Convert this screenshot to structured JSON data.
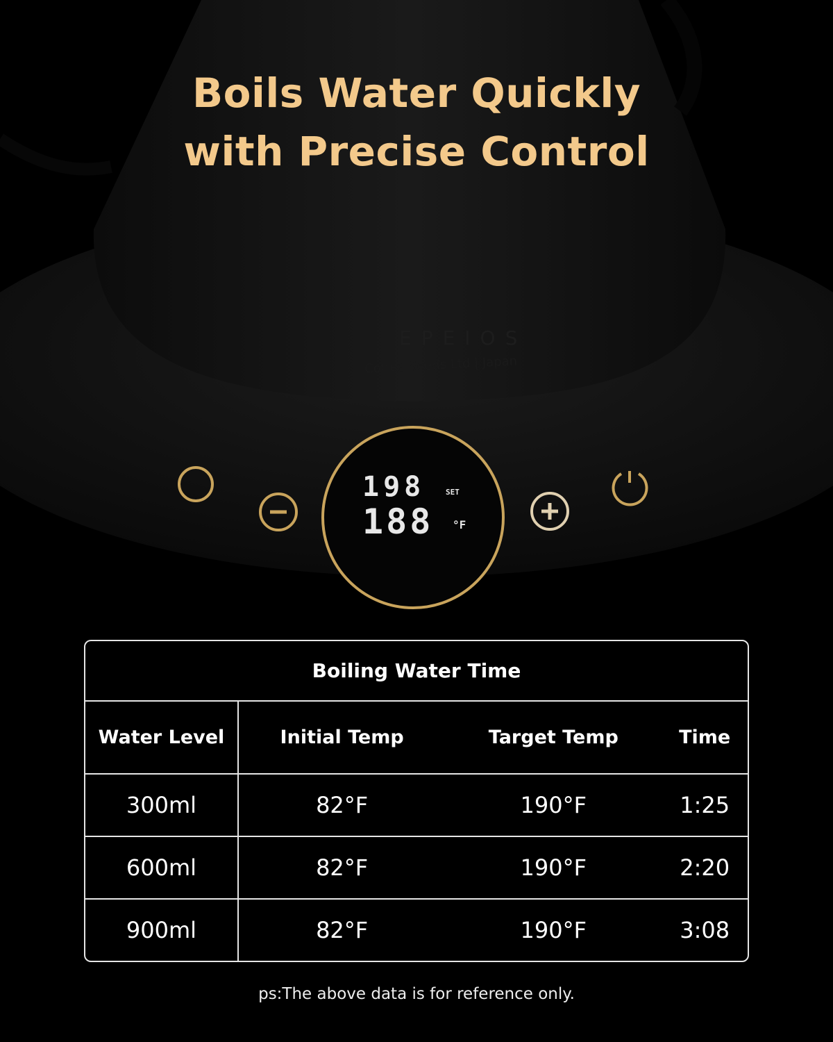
{
  "headline": {
    "line1": "Boils Water Quickly",
    "line2": "with Precise Control",
    "color": "#f3c98b"
  },
  "kettle": {
    "brand": "EPEIOS",
    "made_in": "Coffee Seeds Ltd | Japan",
    "display": {
      "set_temp": "198",
      "set_label": "SET",
      "current_temp": "188",
      "unit": "°F"
    },
    "buttons": [
      "keep-warm-icon",
      "minus-icon",
      "plus-icon",
      "power-icon"
    ],
    "accent": "#c9a45c"
  },
  "table": {
    "title": "Boiling Water Time",
    "headers": [
      "Water Level",
      "Initial Temp",
      "Target Temp",
      "Time"
    ],
    "rows": [
      [
        "300ml",
        "82°F",
        "190°F",
        "1:25"
      ],
      [
        "600ml",
        "82°F",
        "190°F",
        "2:20"
      ],
      [
        "900ml",
        "82°F",
        "190°F",
        "3:08"
      ]
    ]
  },
  "note": "ps:The above data is for reference only."
}
